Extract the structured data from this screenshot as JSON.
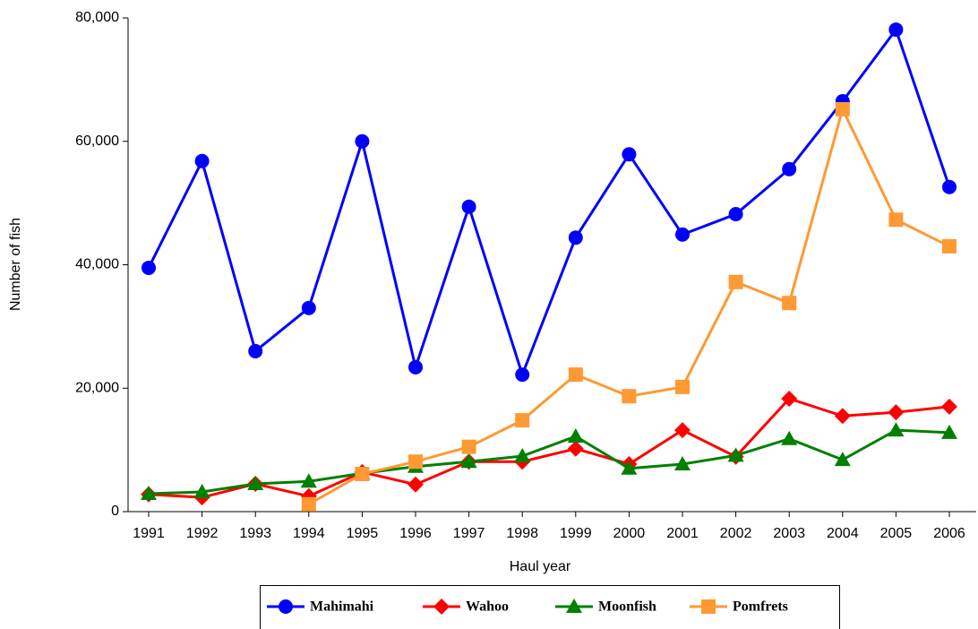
{
  "chart_data": {
    "type": "line",
    "x_label": "Haul year",
    "y_label": "Number of fish",
    "categories": [
      "1991",
      "1992",
      "1993",
      "1994",
      "1995",
      "1996",
      "1997",
      "1998",
      "1999",
      "2000",
      "2001",
      "2002",
      "2003",
      "2004",
      "2005",
      "2006"
    ],
    "ylim": [
      0,
      80000
    ],
    "yticks": [
      0,
      {
        "value": 20000,
        "label": "20,000"
      },
      {
        "value": 40000,
        "label": "40,000"
      },
      {
        "value": 60000,
        "label": "60,000"
      },
      {
        "value": 80000,
        "label": "80,000"
      }
    ],
    "series": [
      {
        "name": "Mahimahi",
        "color": "#0000ff",
        "marker": "circle",
        "values": [
          39500,
          56800,
          26000,
          33000,
          60000,
          23400,
          49400,
          22200,
          44400,
          57900,
          44900,
          48200,
          55500,
          66500,
          78100,
          52600
        ]
      },
      {
        "name": "Wahoo",
        "color": "#ff0000",
        "marker": "diamond",
        "values": [
          2800,
          2300,
          4500,
          2500,
          6400,
          4400,
          8100,
          8100,
          10200,
          7700,
          13200,
          8900,
          18300,
          15500,
          16100,
          17000
        ]
      },
      {
        "name": "Moonfish",
        "color": "#008000",
        "marker": "triangle",
        "values": [
          2900,
          3200,
          4500,
          4900,
          6200,
          7300,
          8100,
          9000,
          12200,
          7000,
          7700,
          9100,
          11800,
          8400,
          13200,
          12800
        ]
      },
      {
        "name": "Pomfrets",
        "color": "#ff9933",
        "marker": "square",
        "values": [
          null,
          null,
          null,
          1200,
          6100,
          8100,
          10500,
          14800,
          22200,
          18700,
          20200,
          37200,
          33800,
          65200,
          47300,
          43000
        ]
      }
    ]
  }
}
